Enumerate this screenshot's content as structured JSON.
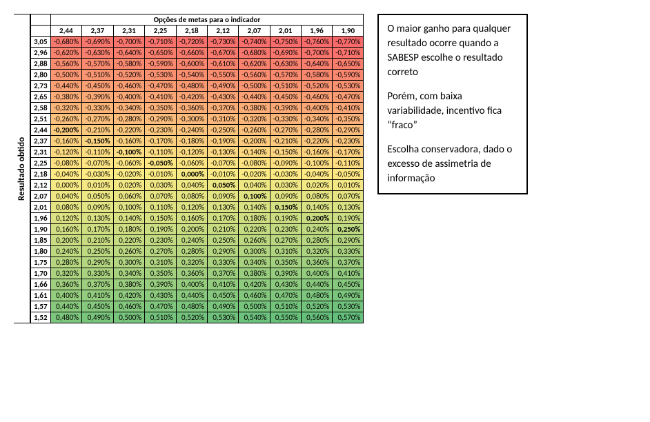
{
  "title_top": "Opções de metas para o indicador",
  "title_left": "Resultado obtido",
  "col_headers": [
    "2,44",
    "2,37",
    "2,31",
    "2,25",
    "2,18",
    "2,12",
    "2,07",
    "2,01",
    "1,96",
    "1,90"
  ],
  "row_headers": [
    "3,05",
    "2,96",
    "2,88",
    "2,80",
    "2,73",
    "2,65",
    "2,58",
    "2,51",
    "2,44",
    "2,37",
    "2,31",
    "2,25",
    "2,18",
    "2,12",
    "2,07",
    "2,01",
    "1,96",
    "1,90",
    "1,85",
    "1,80",
    "1,75",
    "1,70",
    "1,66",
    "1,61",
    "1,57",
    "1,52"
  ],
  "cells": [
    [
      "-0,680%",
      "-0,690%",
      "-0,700%",
      "-0,710%",
      "-0,720%",
      "-0,730%",
      "-0,740%",
      "-0,750%",
      "-0,760%",
      "-0,770%"
    ],
    [
      "-0,620%",
      "-0,630%",
      "-0,640%",
      "-0,650%",
      "-0,660%",
      "-0,670%",
      "-0,680%",
      "-0,690%",
      "-0,700%",
      "-0,710%"
    ],
    [
      "-0,560%",
      "-0,570%",
      "-0,580%",
      "-0,590%",
      "-0,600%",
      "-0,610%",
      "-0,620%",
      "-0,630%",
      "-0,640%",
      "-0,650%"
    ],
    [
      "-0,500%",
      "-0,510%",
      "-0,520%",
      "-0,530%",
      "-0,540%",
      "-0,550%",
      "-0,560%",
      "-0,570%",
      "-0,580%",
      "-0,590%"
    ],
    [
      "-0,440%",
      "-0,450%",
      "-0,460%",
      "-0,470%",
      "-0,480%",
      "-0,490%",
      "-0,500%",
      "-0,510%",
      "-0,520%",
      "-0,530%"
    ],
    [
      "-0,380%",
      "-0,390%",
      "-0,400%",
      "-0,410%",
      "-0,420%",
      "-0,430%",
      "-0,440%",
      "-0,450%",
      "-0,460%",
      "-0,470%"
    ],
    [
      "-0,320%",
      "-0,330%",
      "-0,340%",
      "-0,350%",
      "-0,360%",
      "-0,370%",
      "-0,380%",
      "-0,390%",
      "-0,400%",
      "-0,410%"
    ],
    [
      "-0,260%",
      "-0,270%",
      "-0,280%",
      "-0,290%",
      "-0,300%",
      "-0,310%",
      "-0,320%",
      "-0,330%",
      "-0,340%",
      "-0,350%"
    ],
    [
      "-0,200%",
      "-0,210%",
      "-0,220%",
      "-0,230%",
      "-0,240%",
      "-0,250%",
      "-0,260%",
      "-0,270%",
      "-0,280%",
      "-0,290%"
    ],
    [
      "-0,160%",
      "-0,150%",
      "-0,160%",
      "-0,170%",
      "-0,180%",
      "-0,190%",
      "-0,200%",
      "-0,210%",
      "-0,220%",
      "-0,230%"
    ],
    [
      "-0,120%",
      "-0,110%",
      "-0,100%",
      "-0,110%",
      "-0,120%",
      "-0,130%",
      "-0,140%",
      "-0,150%",
      "-0,160%",
      "-0,170%"
    ],
    [
      "-0,080%",
      "-0,070%",
      "-0,060%",
      "-0,050%",
      "-0,060%",
      "-0,070%",
      "-0,080%",
      "-0,090%",
      "-0,100%",
      "-0,110%"
    ],
    [
      "-0,040%",
      "-0,030%",
      "-0,020%",
      "-0,010%",
      "0,000%",
      "-0,010%",
      "-0,020%",
      "-0,030%",
      "-0,040%",
      "-0,050%"
    ],
    [
      "0,000%",
      "0,010%",
      "0,020%",
      "0,030%",
      "0,040%",
      "0,050%",
      "0,040%",
      "0,030%",
      "0,020%",
      "0,010%"
    ],
    [
      "0,040%",
      "0,050%",
      "0,060%",
      "0,070%",
      "0,080%",
      "0,090%",
      "0,100%",
      "0,090%",
      "0,080%",
      "0,070%"
    ],
    [
      "0,080%",
      "0,090%",
      "0,100%",
      "0,110%",
      "0,120%",
      "0,130%",
      "0,140%",
      "0,150%",
      "0,140%",
      "0,130%"
    ],
    [
      "0,120%",
      "0,130%",
      "0,140%",
      "0,150%",
      "0,160%",
      "0,170%",
      "0,180%",
      "0,190%",
      "0,200%",
      "0,190%"
    ],
    [
      "0,160%",
      "0,170%",
      "0,180%",
      "0,190%",
      "0,200%",
      "0,210%",
      "0,220%",
      "0,230%",
      "0,240%",
      "0,250%"
    ],
    [
      "0,200%",
      "0,210%",
      "0,220%",
      "0,230%",
      "0,240%",
      "0,250%",
      "0,260%",
      "0,270%",
      "0,280%",
      "0,290%"
    ],
    [
      "0,240%",
      "0,250%",
      "0,260%",
      "0,270%",
      "0,280%",
      "0,290%",
      "0,300%",
      "0,310%",
      "0,320%",
      "0,330%"
    ],
    [
      "0,280%",
      "0,290%",
      "0,300%",
      "0,310%",
      "0,320%",
      "0,330%",
      "0,340%",
      "0,350%",
      "0,360%",
      "0,370%"
    ],
    [
      "0,320%",
      "0,330%",
      "0,340%",
      "0,350%",
      "0,360%",
      "0,370%",
      "0,380%",
      "0,390%",
      "0,400%",
      "0,410%"
    ],
    [
      "0,360%",
      "0,370%",
      "0,380%",
      "0,390%",
      "0,400%",
      "0,410%",
      "0,420%",
      "0,430%",
      "0,440%",
      "0,450%"
    ],
    [
      "0,400%",
      "0,410%",
      "0,420%",
      "0,430%",
      "0,440%",
      "0,450%",
      "0,460%",
      "0,470%",
      "0,480%",
      "0,490%"
    ],
    [
      "0,440%",
      "0,450%",
      "0,460%",
      "0,470%",
      "0,480%",
      "0,490%",
      "0,500%",
      "0,510%",
      "0,520%",
      "0,530%"
    ],
    [
      "0,480%",
      "0,490%",
      "0,500%",
      "0,510%",
      "0,520%",
      "0,530%",
      "0,540%",
      "0,550%",
      "0,560%",
      "0,570%"
    ]
  ],
  "bold_cells": [
    [
      8,
      0
    ],
    [
      9,
      1
    ],
    [
      10,
      2
    ],
    [
      11,
      3
    ],
    [
      12,
      4
    ],
    [
      13,
      5
    ],
    [
      14,
      6
    ],
    [
      15,
      7
    ],
    [
      16,
      8
    ],
    [
      17,
      9
    ]
  ],
  "colors": {
    "scale": [
      {
        "t": 0.0,
        "c": "#f8696b"
      },
      {
        "t": 0.15,
        "c": "#fa8a6f"
      },
      {
        "t": 0.3,
        "c": "#fbae78"
      },
      {
        "t": 0.45,
        "c": "#fdd17f"
      },
      {
        "t": 0.55,
        "c": "#ffeb84"
      },
      {
        "t": 0.65,
        "c": "#e0e383"
      },
      {
        "t": 0.8,
        "c": "#b1d580"
      },
      {
        "t": 1.0,
        "c": "#63be7b"
      }
    ],
    "min_val": -0.77,
    "max_val": 0.57
  },
  "side_text": {
    "p1": "O maior ganho para qualquer resultado ocorre quando a SABESP escolhe o resultado correto",
    "p2": "Porém, com baixa variabilidade, incentivo fica “fraco”",
    "p3": "Escolha conservadora, dado o excesso de assimetria de informação"
  }
}
